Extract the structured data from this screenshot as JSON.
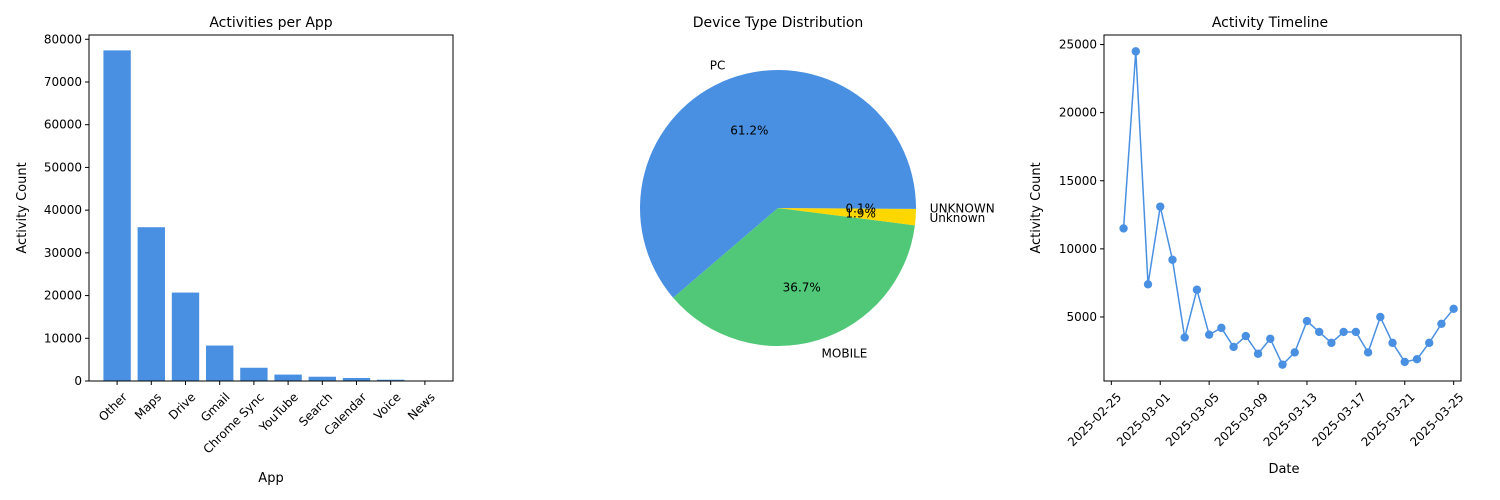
{
  "colors": {
    "blue": "#4a90e2",
    "green": "#50c878",
    "yellow": "#ffd700"
  },
  "chart_data": [
    {
      "type": "bar",
      "title": "Activities per App",
      "xlabel": "App",
      "ylabel": "Activity Count",
      "categories": [
        "Other",
        "Maps",
        "Drive",
        "Gmail",
        "Chrome Sync",
        "YouTube",
        "Search",
        "Calendar",
        "Voice",
        "News"
      ],
      "values": [
        77400,
        36000,
        20700,
        8300,
        3100,
        1500,
        1000,
        700,
        300,
        80
      ],
      "ylim": [
        0,
        81000
      ],
      "yticks": [
        0,
        10000,
        20000,
        30000,
        40000,
        50000,
        60000,
        70000,
        80000
      ],
      "grid": false
    },
    {
      "type": "pie",
      "title": "Device Type Distribution",
      "slices": [
        {
          "label": "PC",
          "value": 61.2,
          "pct_label": "61.2%"
        },
        {
          "label": "MOBILE",
          "value": 36.7,
          "pct_label": "36.7%"
        },
        {
          "label": "Unknown",
          "value": 1.9,
          "pct_label": "1.9%"
        },
        {
          "label": "UNKNOWN",
          "value": 0.1,
          "pct_label": "0.1%"
        }
      ]
    },
    {
      "type": "line",
      "title": "Activity Timeline",
      "xlabel": "Date",
      "ylabel": "Activity Count",
      "x": [
        "2025-02-26",
        "2025-02-27",
        "2025-02-28",
        "2025-03-01",
        "2025-03-02",
        "2025-03-03",
        "2025-03-04",
        "2025-03-05",
        "2025-03-06",
        "2025-03-07",
        "2025-03-08",
        "2025-03-09",
        "2025-03-10",
        "2025-03-11",
        "2025-03-12",
        "2025-03-13",
        "2025-03-14",
        "2025-03-15",
        "2025-03-16",
        "2025-03-17",
        "2025-03-18",
        "2025-03-19",
        "2025-03-20",
        "2025-03-21",
        "2025-03-22",
        "2025-03-23",
        "2025-03-24",
        "2025-03-25"
      ],
      "y": [
        11500,
        24500,
        7400,
        13100,
        9200,
        3500,
        7000,
        3700,
        4200,
        2800,
        3600,
        2300,
        3400,
        1500,
        2400,
        4700,
        3900,
        3100,
        3900,
        3900,
        2400,
        5000,
        3100,
        1700,
        1900,
        3100,
        4500,
        5600
      ],
      "xticks": [
        "2025-02-25",
        "2025-03-01",
        "2025-03-05",
        "2025-03-09",
        "2025-03-13",
        "2025-03-17",
        "2025-03-21",
        "2025-03-25"
      ],
      "yticks": [
        5000,
        10000,
        15000,
        20000,
        25000
      ],
      "ylim": [
        300,
        25700
      ],
      "grid": false
    }
  ]
}
